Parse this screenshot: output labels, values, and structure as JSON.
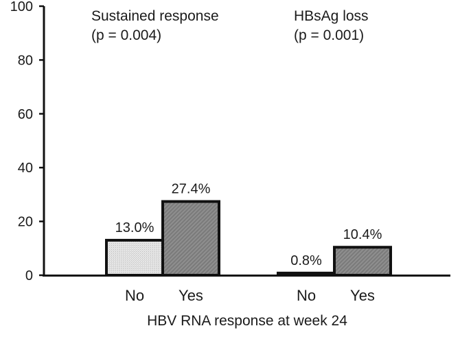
{
  "chart_data": {
    "type": "bar",
    "xlabel": "HBV RNA response at week 24",
    "ylabel": "",
    "ylim": [
      0,
      100
    ],
    "yticks": [
      "0",
      "20",
      "40",
      "60",
      "80",
      "100"
    ],
    "groups": [
      {
        "title": "Sustained response",
        "subtitle": "(p = 0.004)",
        "categories": [
          "No",
          "Yes"
        ],
        "values": [
          13.0,
          27.4
        ],
        "labels": [
          "13.0%",
          "27.4%"
        ]
      },
      {
        "title": "HBsAg loss",
        "subtitle": "(p = 0.001)",
        "categories": [
          "No",
          "Yes"
        ],
        "values": [
          0.8,
          10.4
        ],
        "labels": [
          "0.8%",
          "10.4%"
        ]
      }
    ],
    "bar_fill": {
      "No": "#d8d8d8",
      "Yes": "#8c8c8c"
    },
    "grid": false,
    "legend": "none"
  }
}
